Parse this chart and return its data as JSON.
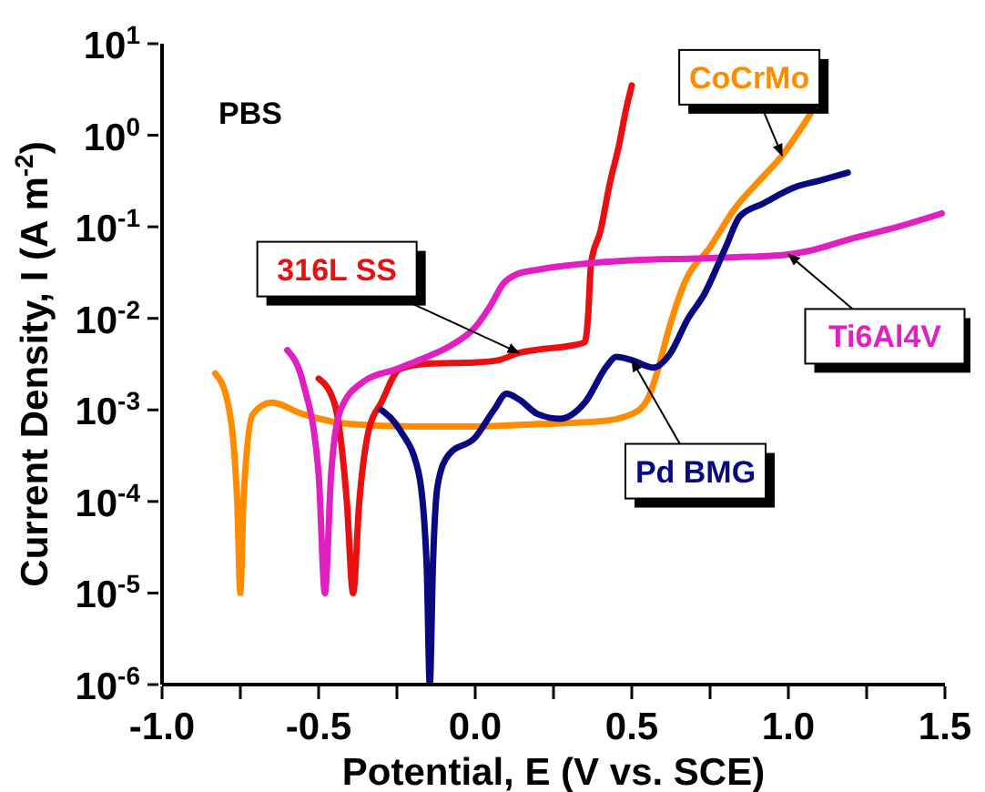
{
  "chart_data": {
    "type": "line",
    "xlabel": "Potential, E (V vs. SCE)",
    "ylabel": "Current Density, I (A m$^{-2}$)",
    "annotations": [
      "PBS"
    ],
    "log": "y",
    "legend": false,
    "marker": "none",
    "line_style": "solid",
    "xlim": [
      -1.0,
      1.5
    ],
    "xticks": [
      {
        "value": -1,
        "label": "-1.0"
      },
      {
        "value": -0.75,
        "label": null
      },
      {
        "value": -0.5,
        "label": "-0.5"
      },
      {
        "value": -0.25,
        "label": null
      },
      {
        "value": 0,
        "label": "0.0"
      },
      {
        "value": 0.25,
        "label": null
      },
      {
        "value": 0.5,
        "label": "0.5"
      },
      {
        "value": 0.75,
        "label": null
      },
      {
        "value": 1,
        "label": "1.0"
      },
      {
        "value": 1.25,
        "label": null
      },
      {
        "value": 1.5,
        "label": "1.5"
      }
    ],
    "ylim": [
      1e-06,
      10
    ],
    "yticks": [
      {
        "value": 1e-06,
        "label": "10$^{-6}$"
      },
      {
        "value": 1e-05,
        "label": "10$^{-5}$"
      },
      {
        "value": 0.0001,
        "label": "10$^{-4}$"
      },
      {
        "value": 0.001,
        "label": "10$^{-3}$"
      },
      {
        "value": 0.01,
        "label": "10$^{-2}$"
      },
      {
        "value": 0.1,
        "label": "10$^{-1}$"
      },
      {
        "value": 1,
        "label": "10$^{0}$"
      },
      {
        "value": 10,
        "label": "10$^{1}$"
      }
    ],
    "series": [
      {
        "name": "CoCrMo",
        "color": "#ff8c00",
        "x": [
          -0.83,
          -0.79,
          -0.76,
          -0.75,
          -0.74,
          -0.71,
          -0.65,
          -0.55,
          -0.4,
          -0.2,
          0.0,
          0.2,
          0.4,
          0.5,
          0.55,
          0.58,
          0.62,
          0.67,
          0.75,
          0.83,
          0.9,
          0.98,
          1.07
        ],
        "values": [
          0.0025,
          0.0012,
          0.0001,
          1e-05,
          0.0001,
          0.0009,
          0.0012,
          0.0009,
          0.0007,
          0.00066,
          0.00066,
          0.0007,
          0.00075,
          0.0009,
          0.0013,
          0.0025,
          0.008,
          0.025,
          0.06,
          0.16,
          0.3,
          0.6,
          1.7
        ]
      },
      {
        "name": "316L SS",
        "color": "#e81010",
        "x": [
          -0.5,
          -0.45,
          -0.41,
          -0.39,
          -0.37,
          -0.34,
          -0.3,
          -0.24,
          -0.15,
          0.0,
          0.075,
          0.14,
          0.21,
          0.3,
          0.35,
          0.36,
          0.37,
          0.4,
          0.43,
          0.46,
          0.48,
          0.5
        ],
        "values": [
          0.0022,
          0.0012,
          0.0001,
          1e-05,
          0.0001,
          0.0006,
          0.0012,
          0.0028,
          0.0032,
          0.0033,
          0.0035,
          0.0042,
          0.0046,
          0.005,
          0.0055,
          0.01,
          0.04,
          0.09,
          0.3,
          0.8,
          1.8,
          3.5
        ]
      },
      {
        "name": "Ti6Al4V",
        "color": "#e020c0",
        "x": [
          -0.6,
          -0.55,
          -0.5,
          -0.48,
          -0.46,
          -0.43,
          -0.36,
          -0.25,
          -0.17,
          -0.08,
          0.0,
          0.05,
          0.09,
          0.13,
          0.2,
          0.3,
          0.5,
          0.7,
          0.87,
          1.0,
          1.06,
          1.2,
          1.35,
          1.49
        ],
        "values": [
          0.0045,
          0.002,
          0.0002,
          1e-05,
          0.0002,
          0.001,
          0.002,
          0.0028,
          0.0036,
          0.005,
          0.008,
          0.014,
          0.024,
          0.03,
          0.034,
          0.038,
          0.043,
          0.045,
          0.047,
          0.05,
          0.054,
          0.074,
          0.1,
          0.14
        ]
      },
      {
        "name": "Pd BMG",
        "color": "#0a0a80",
        "x": [
          -0.3,
          -0.24,
          -0.18,
          -0.155,
          -0.145,
          -0.135,
          -0.12,
          -0.086,
          0.0,
          0.06,
          0.1,
          0.14,
          0.2,
          0.27,
          0.35,
          0.42,
          0.45,
          0.5,
          0.57,
          0.62,
          0.68,
          0.73,
          0.8,
          0.845,
          0.92,
          1.02,
          1.1,
          1.19
        ],
        "values": [
          0.001,
          0.0006,
          0.0002,
          2e-05,
          1e-06,
          2e-05,
          0.00015,
          0.00032,
          0.0005,
          0.001,
          0.0015,
          0.0013,
          0.0009,
          0.0008,
          0.0012,
          0.003,
          0.0038,
          0.0035,
          0.0029,
          0.004,
          0.01,
          0.018,
          0.06,
          0.13,
          0.18,
          0.27,
          0.32,
          0.39
        ]
      }
    ]
  }
}
